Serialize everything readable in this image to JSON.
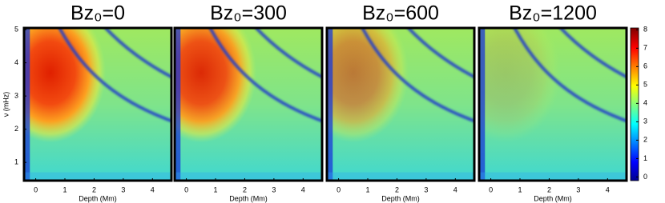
{
  "chart_data": [
    {
      "type": "heatmap",
      "title": "Bz₀=0",
      "xlabel": "Depth (Mm)",
      "ylabel": "ν (mHz)",
      "xlim": [
        -0.4,
        4.65
      ],
      "ylim": [
        0.45,
        5.05
      ],
      "xticks": [
        0,
        1,
        2,
        3,
        4
      ],
      "yticks": [
        1,
        2,
        3,
        4,
        5
      ]
    },
    {
      "type": "heatmap",
      "title": "Bz₀=300",
      "xlabel": "Depth (Mm)",
      "xlim": [
        -0.4,
        4.65
      ],
      "ylim": [
        0.45,
        5.05
      ],
      "xticks": [
        0,
        1,
        2,
        3,
        4
      ]
    },
    {
      "type": "heatmap",
      "title": "Bz₀=600",
      "xlabel": "Depth (Mm)",
      "xlim": [
        -0.4,
        4.65
      ],
      "ylim": [
        0.45,
        5.05
      ],
      "xticks": [
        0,
        1,
        2,
        3,
        4
      ]
    },
    {
      "type": "heatmap",
      "title": "Bz₀=1200",
      "xlabel": "Depth (Mm)",
      "xlim": [
        -0.4,
        4.65
      ],
      "ylim": [
        0.45,
        5.05
      ],
      "xticks": [
        0,
        1,
        2,
        3,
        4
      ],
      "clim": [
        -0.2,
        8.1
      ],
      "cticks": [
        0,
        1,
        2,
        3,
        4,
        5,
        6,
        7,
        8
      ]
    }
  ]
}
